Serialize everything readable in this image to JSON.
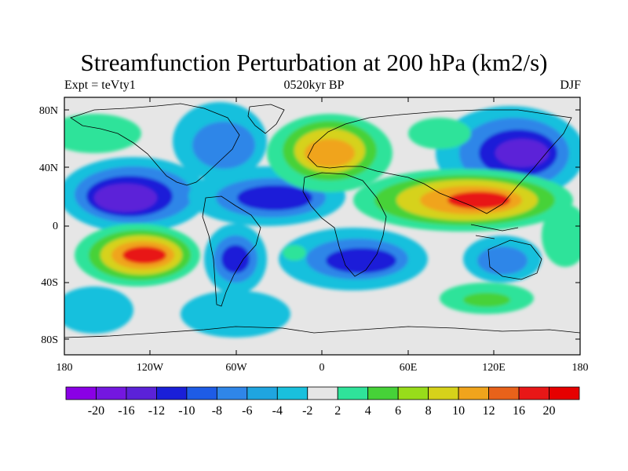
{
  "title": "Streamfunction Perturbation at 200 hPa (km2/s)",
  "left_label": "Expt = teVty1",
  "center_label": "0520kyr BP",
  "right_label": "DJF",
  "lat_ticks": [
    "80N",
    "40N",
    "0",
    "40S",
    "80S"
  ],
  "lon_ticks": [
    "180",
    "120W",
    "60W",
    "0",
    "60E",
    "120E",
    "180"
  ],
  "colorbar": {
    "labels": [
      "-20",
      "-16",
      "-12",
      "-10",
      "-8",
      "-6",
      "-4",
      "-2",
      "2",
      "4",
      "6",
      "8",
      "10",
      "12",
      "16",
      "20"
    ],
    "colors": [
      "#8a00e6",
      "#7417e0",
      "#5b22d8",
      "#1a1fd8",
      "#1e5ce6",
      "#2f86e8",
      "#1fa5e0",
      "#19c0dd",
      "#e6e6e6",
      "#2fe39a",
      "#46d238",
      "#98dc1a",
      "#d6d21a",
      "#f0a41c",
      "#e8621a",
      "#e81717",
      "#e60000"
    ]
  },
  "map_colors": {
    "background": "#e6e6e6",
    "neg_light": "#19c0dd",
    "neg_mid": "#2f86e8",
    "neg_strong": "#1a1fd8",
    "neg_core": "#5b22d8",
    "pos_light": "#2fe39a",
    "pos_mid": "#46d238",
    "pos_yellow": "#d6d21a",
    "pos_orange": "#f0a41c",
    "pos_red": "#e81717"
  }
}
